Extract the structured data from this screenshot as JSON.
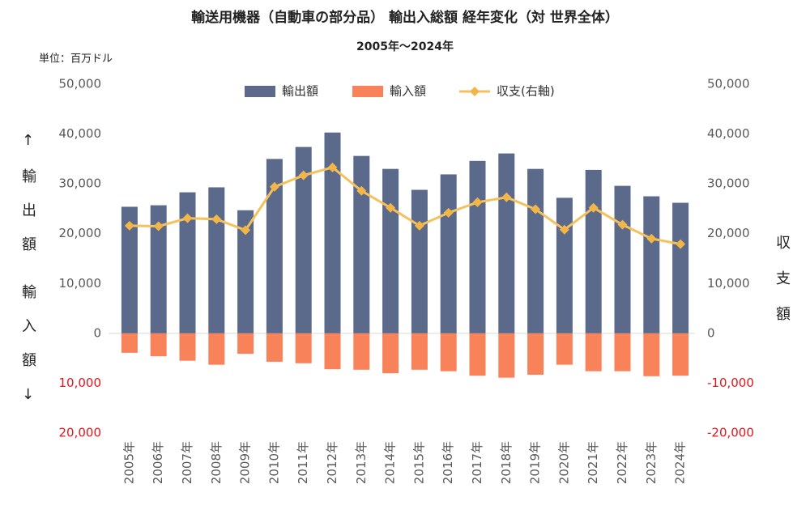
{
  "chart_data": {
    "type": "bar",
    "title": "輸送用機器（自動車の部分品） 輸出入総額 経年変化（対 世界全体）",
    "subtitle": "2005年～2024年",
    "unit_label": "単位：百万ドル",
    "y_label_top": "↑輸出額",
    "y_label_bottom": "輸入額↓",
    "y2_label": "収支額",
    "categories": [
      "2005年",
      "2006年",
      "2007年",
      "2008年",
      "2009年",
      "2010年",
      "2011年",
      "2012年",
      "2013年",
      "2014年",
      "2015年",
      "2016年",
      "2017年",
      "2018年",
      "2019年",
      "2020年",
      "2021年",
      "2022年",
      "2023年",
      "2024年"
    ],
    "series": [
      {
        "name": "輸出額",
        "type": "bar",
        "color": "#5b6a8a",
        "values": [
          25400,
          25700,
          28300,
          29300,
          24700,
          35000,
          37400,
          40300,
          35600,
          33000,
          28800,
          31900,
          34600,
          36100,
          33000,
          27200,
          32800,
          29600,
          27500,
          26200
        ]
      },
      {
        "name": "輸入額",
        "type": "bar",
        "color": "#f8825a",
        "values": [
          -3900,
          -4600,
          -5500,
          -6300,
          -4100,
          -5700,
          -6000,
          -7200,
          -7300,
          -8000,
          -7300,
          -7600,
          -8500,
          -8900,
          -8300,
          -6300,
          -7600,
          -7600,
          -8600,
          -8500
        ]
      },
      {
        "name": "収支(右軸)",
        "type": "line",
        "axis": "y2",
        "color": "#f5c15c",
        "marker_color": "#f2b548",
        "values": [
          21600,
          21500,
          23100,
          22900,
          20700,
          29400,
          31700,
          33300,
          28600,
          25200,
          21600,
          24200,
          26300,
          27300,
          24900,
          20800,
          25200,
          21800,
          19000,
          17900
        ]
      }
    ],
    "ylim": [
      -20000,
      50000
    ],
    "yticks": [
      {
        "value": 50000,
        "label": "50,000"
      },
      {
        "value": 40000,
        "label": "40,000"
      },
      {
        "value": 30000,
        "label": "30,000"
      },
      {
        "value": 20000,
        "label": "20,000"
      },
      {
        "value": 10000,
        "label": "10,000"
      },
      0,
      {
        "value": -10000,
        "label": "10,000"
      },
      {
        "value": -20000,
        "label": "20,000"
      }
    ],
    "y2lim": [
      -20000,
      50000
    ],
    "y2ticks": [
      {
        "value": 50000,
        "label": "50,000"
      },
      {
        "value": 40000,
        "label": "40,000"
      },
      {
        "value": 30000,
        "label": "30,000"
      },
      {
        "value": 20000,
        "label": "20,000"
      },
      {
        "value": 10000,
        "label": "10,000"
      },
      0,
      {
        "value": -10000,
        "label": "-10,000"
      },
      {
        "value": -20000,
        "label": "-20,000"
      }
    ],
    "negative_tick_color": "#e8141b",
    "grid": false,
    "legend": "top"
  }
}
